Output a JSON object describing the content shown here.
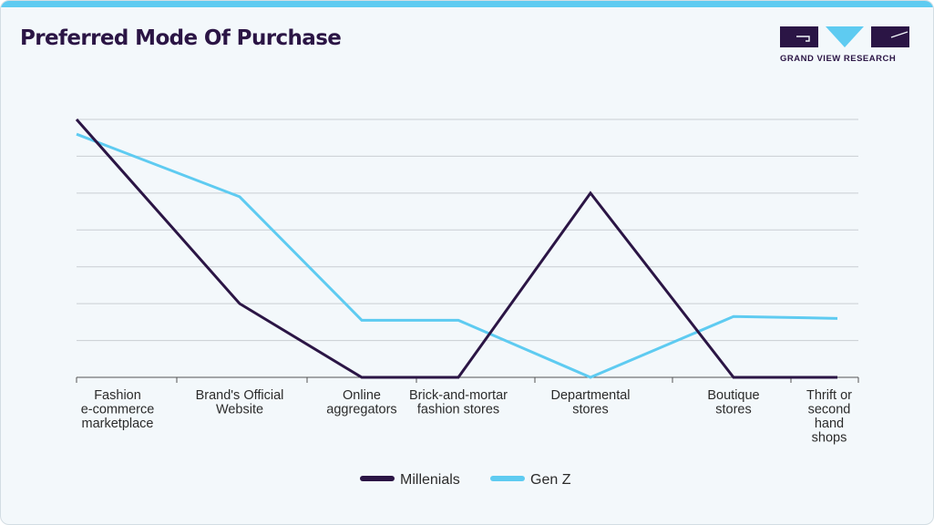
{
  "header": {
    "title": "Preferred Mode Of Purchase",
    "brand": "GRAND VIEW RESEARCH"
  },
  "colors": {
    "millenials": "#2b1545",
    "genz": "#5ecbf1",
    "grid": "#c9ced3",
    "axis": "#555555"
  },
  "chart_data": {
    "type": "line",
    "title": "Preferred Mode Of Purchase",
    "categories": [
      [
        "Fashion",
        "e-commerce",
        "marketplace"
      ],
      [
        "Brand's Official",
        "Website"
      ],
      [
        "Online",
        "aggregators"
      ],
      [
        "Brick-and-mortar",
        "fashion stores"
      ],
      [
        "Departmental",
        "stores"
      ],
      [
        "Boutique",
        "stores"
      ],
      [
        "Thrift or",
        "second",
        "hand",
        "shops"
      ]
    ],
    "series": [
      {
        "name": "Millenials",
        "values": [
          7.0,
          2.0,
          0.0,
          0.0,
          5.0,
          0.0,
          0.0
        ]
      },
      {
        "name": "Gen Z",
        "values": [
          6.6,
          4.9,
          1.55,
          1.55,
          0.0,
          1.65,
          1.6
        ]
      }
    ],
    "ylim": [
      0,
      7
    ],
    "grid": true,
    "y_ticks_shown": false,
    "xlabel": "",
    "ylabel": "",
    "legend": "bottom-center"
  }
}
